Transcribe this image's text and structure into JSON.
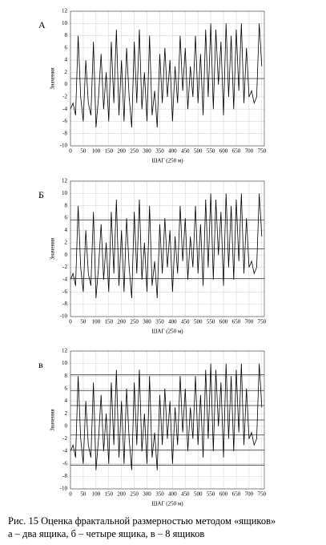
{
  "chart_data": [
    {
      "type": "line",
      "panel_label": "А",
      "xlabel": "ШАГ (250 м)",
      "ylabel": "Значения",
      "grid": true,
      "x": [
        0,
        10,
        20,
        30,
        40,
        50,
        60,
        70,
        80,
        90,
        100,
        110,
        120,
        130,
        140,
        150,
        160,
        170,
        180,
        190,
        200,
        210,
        220,
        230,
        240,
        250,
        260,
        270,
        280,
        290,
        300,
        310,
        320,
        330,
        340,
        350,
        360,
        370,
        380,
        390,
        400,
        410,
        420,
        430,
        440,
        450,
        460,
        470,
        480,
        490,
        500,
        510,
        520,
        530,
        540,
        550,
        560,
        570,
        580,
        590,
        600,
        610,
        620,
        630,
        640,
        650,
        660,
        670,
        680,
        690,
        700,
        710,
        720,
        730,
        740,
        750
      ],
      "series": [
        {
          "color": "#000000",
          "values": [
            -4,
            -3,
            -5,
            8,
            -2,
            -6,
            4,
            -3,
            -5,
            7,
            -7,
            -2,
            5,
            -4,
            2,
            -6,
            7,
            -3,
            9,
            -5,
            4,
            -6,
            6,
            -2,
            -7,
            7,
            -3,
            9,
            -4,
            2,
            -6,
            8,
            -5,
            -1,
            -7,
            5,
            -3,
            6,
            -2,
            4,
            -6,
            3,
            -3,
            8,
            -1,
            6,
            -4,
            3,
            -2,
            8,
            -3,
            5,
            -5,
            9,
            -2,
            10,
            -4,
            9,
            0,
            7,
            -5,
            10,
            -2,
            8,
            -4,
            9,
            -1,
            10,
            -3,
            6,
            -2,
            -1,
            -3,
            -2,
            10,
            3
          ]
        }
      ],
      "xlim": [
        0,
        760
      ],
      "ylim": [
        -10,
        12
      ],
      "xticks": [
        0,
        50,
        100,
        150,
        200,
        250,
        300,
        350,
        400,
        450,
        500,
        550,
        600,
        650,
        700,
        750
      ],
      "yticks": [
        -10,
        -8,
        -6,
        -4,
        -2,
        0,
        2,
        4,
        6,
        8,
        10,
        12
      ],
      "hlines": [
        1
      ],
      "hline_color": "#333333"
    },
    {
      "type": "line",
      "panel_label": "Б",
      "xlabel": "ШАГ (250 м)",
      "ylabel": "Значения",
      "grid": true,
      "x": [
        0,
        10,
        20,
        30,
        40,
        50,
        60,
        70,
        80,
        90,
        100,
        110,
        120,
        130,
        140,
        150,
        160,
        170,
        180,
        190,
        200,
        210,
        220,
        230,
        240,
        250,
        260,
        270,
        280,
        290,
        300,
        310,
        320,
        330,
        340,
        350,
        360,
        370,
        380,
        390,
        400,
        410,
        420,
        430,
        440,
        450,
        460,
        470,
        480,
        490,
        500,
        510,
        520,
        530,
        540,
        550,
        560,
        570,
        580,
        590,
        600,
        610,
        620,
        630,
        640,
        650,
        660,
        670,
        680,
        690,
        700,
        710,
        720,
        730,
        740,
        750
      ],
      "series": [
        {
          "color": "#000000",
          "values": [
            -4,
            -3,
            -5,
            8,
            -2,
            -6,
            4,
            -3,
            -5,
            7,
            -7,
            -2,
            5,
            -4,
            2,
            -6,
            7,
            -3,
            9,
            -5,
            4,
            -6,
            6,
            -2,
            -7,
            7,
            -3,
            9,
            -4,
            2,
            -6,
            8,
            -5,
            -1,
            -7,
            5,
            -3,
            6,
            -2,
            4,
            -6,
            3,
            -3,
            8,
            -1,
            6,
            -4,
            3,
            -2,
            8,
            -3,
            5,
            -5,
            9,
            -2,
            10,
            -4,
            9,
            0,
            7,
            -5,
            10,
            -2,
            8,
            -4,
            9,
            -1,
            10,
            -3,
            6,
            -2,
            -1,
            -3,
            -2,
            10,
            3
          ]
        }
      ],
      "xlim": [
        0,
        760
      ],
      "ylim": [
        -10,
        12
      ],
      "xticks": [
        0,
        50,
        100,
        150,
        200,
        250,
        300,
        350,
        400,
        450,
        500,
        550,
        600,
        650,
        700,
        750
      ],
      "yticks": [
        -10,
        -8,
        -6,
        -4,
        -2,
        0,
        2,
        4,
        6,
        8,
        10,
        12
      ],
      "hlines": [
        5.7,
        1,
        -3.8
      ],
      "hline_color": "#333333"
    },
    {
      "type": "line",
      "panel_label": "в",
      "xlabel": "ШАГ (250 м)",
      "ylabel": "Значения",
      "grid": true,
      "x": [
        0,
        10,
        20,
        30,
        40,
        50,
        60,
        70,
        80,
        90,
        100,
        110,
        120,
        130,
        140,
        150,
        160,
        170,
        180,
        190,
        200,
        210,
        220,
        230,
        240,
        250,
        260,
        270,
        280,
        290,
        300,
        310,
        320,
        330,
        340,
        350,
        360,
        370,
        380,
        390,
        400,
        410,
        420,
        430,
        440,
        450,
        460,
        470,
        480,
        490,
        500,
        510,
        520,
        530,
        540,
        550,
        560,
        570,
        580,
        590,
        600,
        610,
        620,
        630,
        640,
        650,
        660,
        670,
        680,
        690,
        700,
        710,
        720,
        730,
        740,
        750
      ],
      "series": [
        {
          "color": "#000000",
          "values": [
            -4,
            -3,
            -5,
            8,
            -2,
            -6,
            4,
            -3,
            -5,
            7,
            -7,
            -2,
            5,
            -4,
            2,
            -6,
            7,
            -3,
            9,
            -5,
            4,
            -6,
            6,
            -2,
            -7,
            7,
            -3,
            9,
            -4,
            2,
            -6,
            8,
            -5,
            -1,
            -7,
            5,
            -3,
            6,
            -2,
            4,
            -6,
            3,
            -3,
            8,
            -1,
            6,
            -4,
            3,
            -2,
            8,
            -3,
            5,
            -5,
            9,
            -2,
            10,
            -4,
            9,
            0,
            7,
            -5,
            10,
            -2,
            8,
            -4,
            9,
            -1,
            10,
            -3,
            6,
            -2,
            -1,
            -3,
            -2,
            10,
            3
          ]
        }
      ],
      "xlim": [
        0,
        760
      ],
      "ylim": [
        -10,
        12
      ],
      "xticks": [
        0,
        50,
        100,
        150,
        200,
        250,
        300,
        350,
        400,
        450,
        500,
        550,
        600,
        650,
        700,
        750
      ],
      "yticks": [
        -10,
        -8,
        -6,
        -4,
        -2,
        0,
        2,
        4,
        6,
        8,
        10,
        12
      ],
      "hlines": [
        8.2,
        5.7,
        3.3,
        1,
        -1.4,
        -3.8,
        -6.2
      ],
      "hline_color": "#333333"
    }
  ],
  "caption": [
    "Рис. 15 Оценка фрактальной размерностью методом «ящиков»",
    "а – два ящика, б – четыре ящика, в – 8 ящиков"
  ]
}
